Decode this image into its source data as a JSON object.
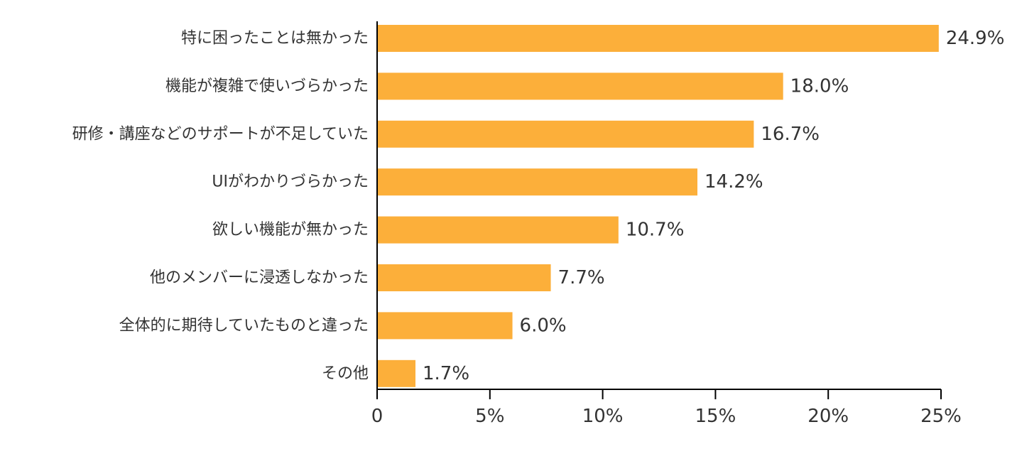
{
  "chart_data": {
    "type": "bar",
    "orientation": "horizontal",
    "categories": [
      "特に困ったことは無かった",
      "機能が複雑で使いづらかった",
      "研修・講座などのサポートが不足していた",
      "UIがわかりづらかった",
      "欲しい機能が無かった",
      "他のメンバーに浸透しなかった",
      "全体的に期待していたものと違った",
      "その他"
    ],
    "values": [
      24.9,
      18.0,
      16.7,
      14.2,
      10.7,
      7.7,
      6.0,
      1.7
    ],
    "value_labels": [
      "24.9%",
      "18.0%",
      "16.7%",
      "14.2%",
      "10.7%",
      "7.7%",
      "6.0%",
      "1.7%"
    ],
    "xlim": [
      0,
      25
    ],
    "x_ticks": [
      0,
      5,
      10,
      15,
      20,
      25
    ],
    "x_tick_labels": [
      "0",
      "5%",
      "10%",
      "15%",
      "20%",
      "25%"
    ],
    "bar_color": "#FCAF3A",
    "axis_color": "#000000",
    "grid": false,
    "legend": "none"
  }
}
